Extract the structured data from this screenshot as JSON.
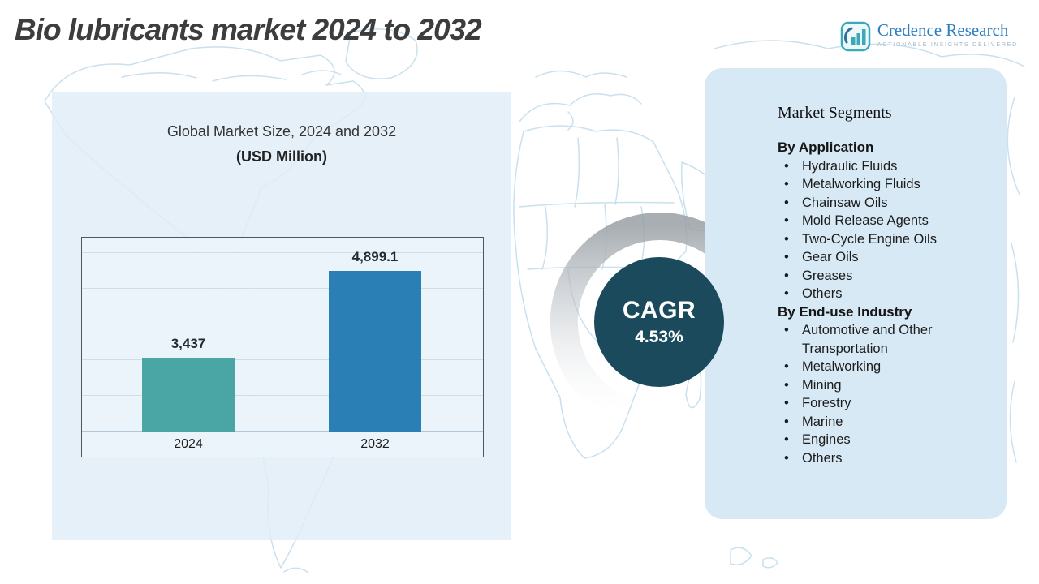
{
  "title": "Bio lubricants market 2024 to 2032",
  "logo": {
    "name": "Credence Research",
    "tagline": "Actionable Insights Delivered"
  },
  "chart_data": {
    "type": "bar",
    "title": "Global Market Size, 2024 and 2032",
    "subtitle": "(USD Million)",
    "categories": [
      "2024",
      "2032"
    ],
    "values": [
      3437,
      4899.1
    ],
    "value_labels": [
      "3,437",
      "4,899.1"
    ],
    "bar_colors": [
      "#4aa5a5",
      "#2a7fb5"
    ],
    "ylim": [
      2200,
      5200
    ],
    "grid": true,
    "legend": false
  },
  "cagr": {
    "label": "CAGR",
    "value": "4.53%"
  },
  "segments": {
    "title": "Market Segments",
    "groups": [
      {
        "heading": "By Application",
        "items": [
          "Hydraulic Fluids",
          "Metalworking Fluids",
          "Chainsaw Oils",
          "Mold Release Agents",
          "Two-Cycle Engine Oils",
          "Gear Oils",
          "Greases",
          "Others"
        ]
      },
      {
        "heading": "By End-use Industry",
        "items": [
          "Automotive and Other Transportation",
          "Metalworking",
          "Mining",
          "Forestry",
          "Marine",
          "Engines",
          "Others"
        ]
      }
    ]
  },
  "colors": {
    "accent_teal": "#4aa5a5",
    "accent_blue": "#2a7fb5",
    "cagr_circle": "#1b4a5c",
    "left_panel_bg": "#e0edf6",
    "segments_panel_bg": "#d7e9f5",
    "map_line": "#c9e0ee",
    "title_color": "#3d3d3d",
    "logo_blue": "#2b7ec1"
  }
}
